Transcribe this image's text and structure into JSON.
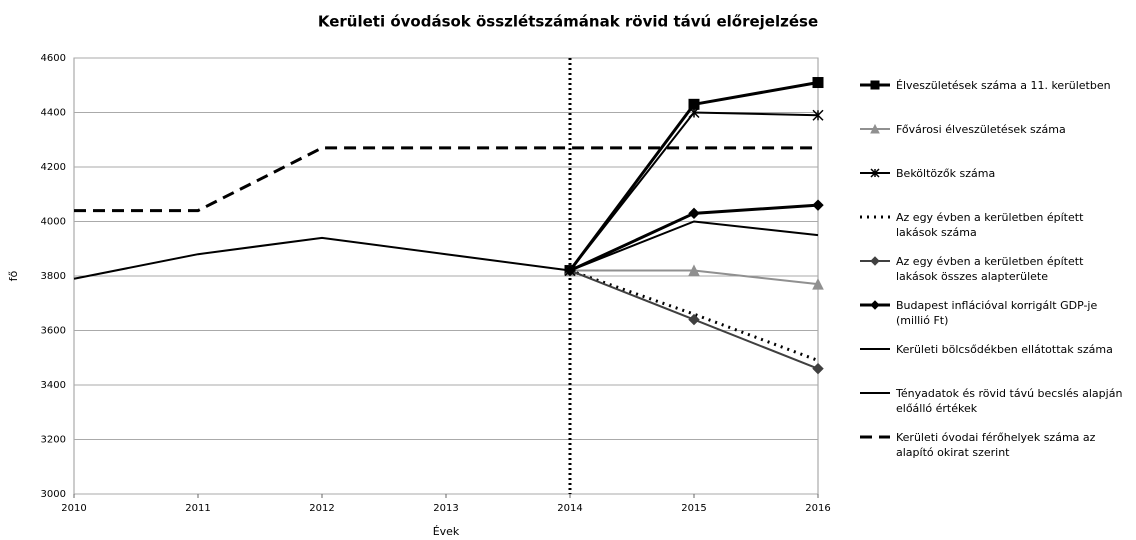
{
  "chart_data": {
    "type": "line",
    "title": "Kerületi óvodások összlétszámának rövid távú előrejelzése",
    "x_label": "Évek",
    "y_label": "fő",
    "x": [
      2010,
      2011,
      2012,
      2013,
      2014,
      2015,
      2016
    ],
    "xlim": [
      2010,
      2016
    ],
    "xticks": [
      2010,
      2011,
      2012,
      2013,
      2014,
      2015,
      2016
    ],
    "ylim": [
      3000,
      4600
    ],
    "yticks": [
      3000,
      3200,
      3400,
      3600,
      3800,
      4000,
      4200,
      4400,
      4600
    ],
    "grid": true,
    "vline_x": 2014,
    "series": [
      {
        "name": "Élveszületések száma a 11. kerületben",
        "color": "#000000",
        "marker": "square",
        "width": 3,
        "dash": "none",
        "values": [
          null,
          null,
          null,
          null,
          3820,
          4430,
          4510
        ]
      },
      {
        "name": "Fővárosi élveszületések száma",
        "color": "#909090",
        "marker": "triangle",
        "width": 2,
        "dash": "none",
        "values": [
          null,
          null,
          null,
          null,
          3820,
          3820,
          3770
        ]
      },
      {
        "name": "Beköltözők száma",
        "color": "#000000",
        "marker": "star",
        "width": 2,
        "dash": "none",
        "values": [
          null,
          null,
          null,
          null,
          3820,
          4400,
          4390
        ]
      },
      {
        "name": "Az egy évben a kerületben épített lakások száma",
        "color": "#000000",
        "marker": "none",
        "width": 3,
        "dash": "2 5",
        "values": [
          null,
          null,
          null,
          null,
          3820,
          3660,
          3490
        ]
      },
      {
        "name": "Az egy évben a kerületben épített lakások összes alapterülete",
        "color": "#404040",
        "marker": "diamond",
        "width": 2,
        "dash": "none",
        "values": [
          null,
          null,
          null,
          null,
          3820,
          3640,
          3460
        ]
      },
      {
        "name": "Budapest inflációval korrigált GDP-je (millió Ft)",
        "color": "#000000",
        "marker": "diamond",
        "width": 3,
        "dash": "none",
        "values": [
          null,
          null,
          null,
          null,
          3820,
          4030,
          4060
        ]
      },
      {
        "name": "Kerületi bölcsődékben ellátottak száma",
        "color": "#000000",
        "marker": "none",
        "width": 2,
        "dash": "none",
        "values": [
          null,
          null,
          null,
          null,
          3820,
          4000,
          3950
        ]
      },
      {
        "name": "Tényadatok és rövid távú becslés alapján előálló értékek",
        "color": "#000000",
        "marker": "none",
        "width": 2,
        "dash": "none",
        "values": [
          3790,
          3880,
          3940,
          3880,
          3820,
          null,
          null
        ]
      },
      {
        "name": "Kerületi óvodai férőhelyek száma az alapító okirat szerint",
        "color": "#000000",
        "marker": "none",
        "width": 3,
        "dash": "12 7",
        "values": [
          4040,
          4040,
          4270,
          4270,
          4270,
          4270,
          4270
        ]
      }
    ]
  }
}
